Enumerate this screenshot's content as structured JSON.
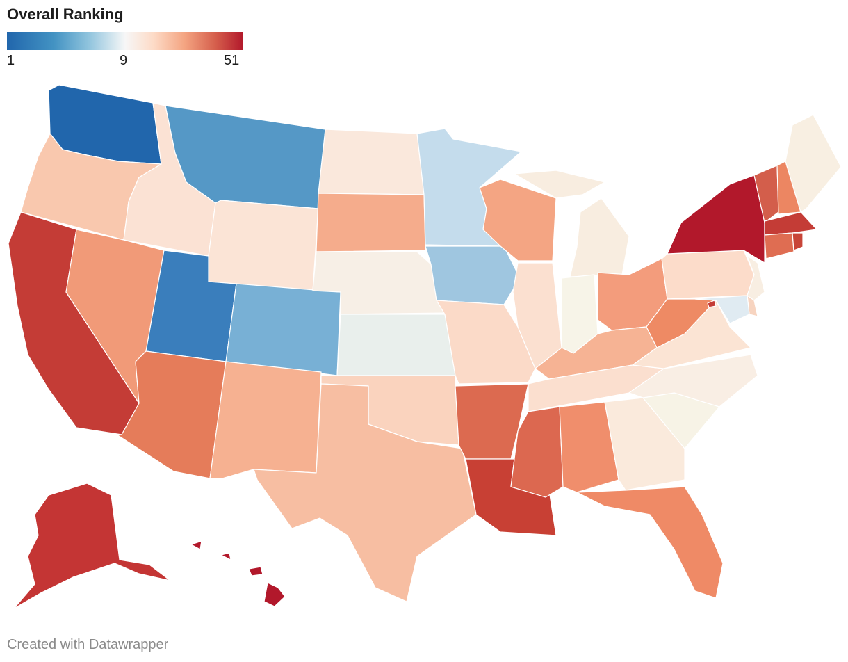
{
  "title": "Overall Ranking",
  "legend": {
    "min": "1",
    "mid": "9",
    "max": "51",
    "colors": [
      "#2166ac",
      "#4393c3",
      "#92c5de",
      "#f7f7f7",
      "#fddbc7",
      "#f4a582",
      "#d6604d",
      "#b2182b"
    ]
  },
  "footer": "Created with Datawrapper",
  "states": [
    {
      "id": "WA",
      "color": "#2166ac"
    },
    {
      "id": "OR",
      "color": "#f9c8ae"
    },
    {
      "id": "CA",
      "color": "#c43c36"
    },
    {
      "id": "ID",
      "color": "#fbe2d4"
    },
    {
      "id": "NV",
      "color": "#f19a78"
    },
    {
      "id": "MT",
      "color": "#5598c6"
    },
    {
      "id": "WY",
      "color": "#fbe4d6"
    },
    {
      "id": "UT",
      "color": "#3a7ebc"
    },
    {
      "id": "CO",
      "color": "#78b0d5"
    },
    {
      "id": "AZ",
      "color": "#e57c5a"
    },
    {
      "id": "NM",
      "color": "#f6b191"
    },
    {
      "id": "ND",
      "color": "#fae8dc"
    },
    {
      "id": "SD",
      "color": "#f5ac8c"
    },
    {
      "id": "NE",
      "color": "#f7efe6"
    },
    {
      "id": "KS",
      "color": "#e9efec"
    },
    {
      "id": "OK",
      "color": "#fad3be"
    },
    {
      "id": "TX",
      "color": "#f7bea2"
    },
    {
      "id": "MN",
      "color": "#c4dcec"
    },
    {
      "id": "IA",
      "color": "#9fc6e0"
    },
    {
      "id": "MO",
      "color": "#fbdac8"
    },
    {
      "id": "AR",
      "color": "#dc6a50"
    },
    {
      "id": "LA",
      "color": "#c84034"
    },
    {
      "id": "WI",
      "color": "#f4a583"
    },
    {
      "id": "IL",
      "color": "#fbe0d0"
    },
    {
      "id": "MI",
      "color": "#f8ede0"
    },
    {
      "id": "IN",
      "color": "#f7f4e8"
    },
    {
      "id": "OH",
      "color": "#f39c7c"
    },
    {
      "id": "KY",
      "color": "#f6b394"
    },
    {
      "id": "TN",
      "color": "#fbdfcf"
    },
    {
      "id": "MS",
      "color": "#dc6850"
    },
    {
      "id": "AL",
      "color": "#f08e6c"
    },
    {
      "id": "FL",
      "color": "#ef8a66"
    },
    {
      "id": "GA",
      "color": "#faeadc"
    },
    {
      "id": "SC",
      "color": "#f7f3e6"
    },
    {
      "id": "NC",
      "color": "#f9eee4"
    },
    {
      "id": "VA",
      "color": "#fbe4d4"
    },
    {
      "id": "WV",
      "color": "#ee8a64"
    },
    {
      "id": "PA",
      "color": "#fcdcca"
    },
    {
      "id": "NY",
      "color": "#b2182b"
    },
    {
      "id": "VT",
      "color": "#d35e4b"
    },
    {
      "id": "NH",
      "color": "#ec8662"
    },
    {
      "id": "ME",
      "color": "#f8efe2"
    },
    {
      "id": "MA",
      "color": "#c43c36"
    },
    {
      "id": "CT",
      "color": "#df6d52"
    },
    {
      "id": "RI",
      "color": "#c84538"
    },
    {
      "id": "NJ",
      "color": "#f8eee2"
    },
    {
      "id": "DE",
      "color": "#f7d4c0"
    },
    {
      "id": "MD",
      "color": "#e0ebf2"
    },
    {
      "id": "DC",
      "color": "#c43c36"
    },
    {
      "id": "AK",
      "color": "#c43534"
    },
    {
      "id": "HI",
      "color": "#b2182b"
    }
  ]
}
